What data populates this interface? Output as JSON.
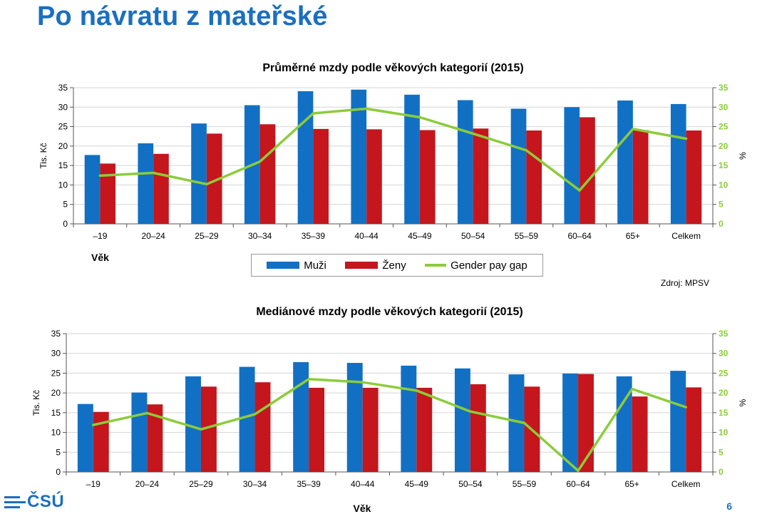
{
  "page": {
    "title": "Po návratu z mateřské",
    "source": "Zdroj: MPSV",
    "logo_text": "ČSÚ",
    "page_number": "6"
  },
  "colors": {
    "title": "#1a6fc0",
    "muzi": "#1170c4",
    "zeny": "#c4161c",
    "gap": "#8ccc3a",
    "logo": "#1a6fc0",
    "page_number": "#1a6fc0"
  },
  "legend": [
    {
      "label": "Muži",
      "color": "#1170c4",
      "kind": "bar",
      "icon": "bar-swatch-icon"
    },
    {
      "label": "Ženy",
      "color": "#c4161c",
      "kind": "bar",
      "icon": "bar-swatch-icon"
    },
    {
      "label": "Gender pay gap",
      "color": "#8ccc3a",
      "kind": "line",
      "icon": "line-swatch-icon"
    }
  ],
  "chart_data": [
    {
      "type": "bar",
      "title": "Průměrné mzdy podle věkových kategorií (2015)",
      "xlabel": "Věk",
      "ylabel": "Tis. Kč",
      "y2label": "%",
      "ylim": [
        0,
        35
      ],
      "y2lim": [
        0,
        35
      ],
      "yticks": [
        0,
        5,
        10,
        15,
        20,
        25,
        30,
        35
      ],
      "grid": true,
      "categories": [
        "–19",
        "20–24",
        "25–29",
        "30–34",
        "35–39",
        "40–44",
        "45–49",
        "50–54",
        "55–59",
        "60–64",
        "65+",
        "Celkem"
      ],
      "series": [
        {
          "name": "Muži",
          "kind": "bar",
          "axis": "left",
          "values": [
            17.7,
            20.7,
            25.8,
            30.5,
            34.1,
            34.5,
            33.2,
            31.8,
            29.6,
            30.0,
            31.7,
            30.8
          ]
        },
        {
          "name": "Ženy",
          "kind": "bar",
          "axis": "left",
          "values": [
            15.5,
            18.0,
            23.2,
            25.6,
            24.4,
            24.3,
            24.1,
            24.5,
            24.0,
            27.4,
            24.1,
            24.0
          ]
        },
        {
          "name": "Gender pay gap",
          "kind": "line",
          "axis": "right",
          "values": [
            12.4,
            13.1,
            10.2,
            16.0,
            28.4,
            29.6,
            27.4,
            23.2,
            18.9,
            8.6,
            24.4,
            21.9
          ]
        }
      ]
    },
    {
      "type": "bar",
      "title": "Mediánové mzdy podle věkových kategorií (2015)",
      "xlabel": "Věk",
      "ylabel": "Tis. Kč",
      "y2label": "%",
      "ylim": [
        0,
        35
      ],
      "y2lim": [
        0,
        35
      ],
      "yticks": [
        0,
        5,
        10,
        15,
        20,
        25,
        30,
        35
      ],
      "grid": true,
      "categories": [
        "–19",
        "20–24",
        "25–29",
        "30–34",
        "35–39",
        "40–44",
        "45–49",
        "50–54",
        "55–59",
        "60–64",
        "65+",
        "Celkem"
      ],
      "series": [
        {
          "name": "Muži",
          "kind": "bar",
          "axis": "left",
          "values": [
            17.2,
            20.1,
            24.2,
            26.6,
            27.8,
            27.6,
            26.9,
            26.2,
            24.7,
            24.9,
            24.2,
            25.6
          ]
        },
        {
          "name": "Ženy",
          "kind": "bar",
          "axis": "left",
          "values": [
            15.2,
            17.1,
            21.6,
            22.7,
            21.3,
            21.3,
            21.3,
            22.2,
            21.6,
            24.8,
            19.1,
            21.4
          ]
        },
        {
          "name": "Gender pay gap",
          "kind": "line",
          "axis": "right",
          "values": [
            11.9,
            14.9,
            10.8,
            14.6,
            23.5,
            22.7,
            20.6,
            15.3,
            12.4,
            0.3,
            21.0,
            16.4
          ]
        }
      ]
    }
  ]
}
